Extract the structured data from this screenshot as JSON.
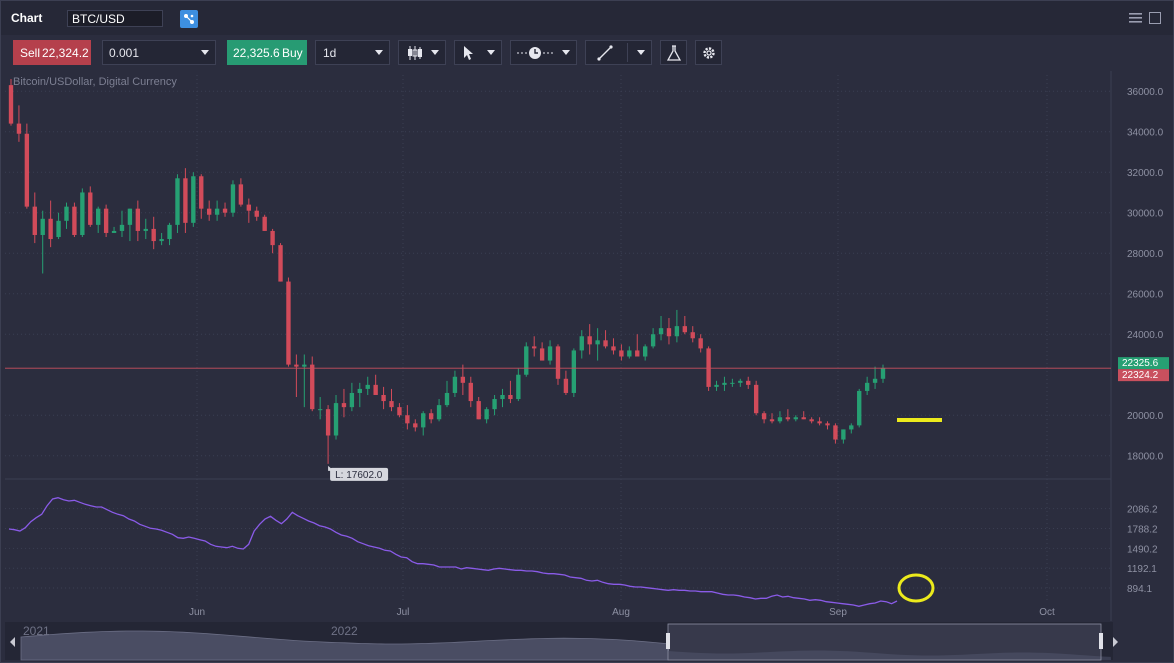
{
  "window": {
    "title": "Chart",
    "symbol": "BTC/USD"
  },
  "toolbar": {
    "sell_label": "Sell",
    "sell_price": "22,324.2",
    "quantity": "0.001",
    "buy_price": "22,325.6",
    "buy_label": "Buy",
    "timeframe": "1d"
  },
  "chart_data": {
    "type": "candlestick",
    "title": "Bitcoin/USDollar, Digital Currency",
    "x_ticks": [
      "Jun",
      "Jul",
      "Aug",
      "Sep",
      "Oct"
    ],
    "y_ticks": [
      "36000.0",
      "34000.0",
      "32000.0",
      "30000.0",
      "28000.0",
      "26000.0",
      "24000.0",
      "20000.0",
      "18000.0"
    ],
    "ylim": [
      17000,
      36800
    ],
    "ask_price": "22325.6",
    "bid_price": "22324.2",
    "low_marker": "L: 17602.0",
    "candles": [
      [
        36300,
        36600,
        34300,
        34400
      ],
      [
        34400,
        35300,
        33500,
        33900
      ],
      [
        33900,
        34400,
        30200,
        30300
      ],
      [
        30300,
        31000,
        28500,
        28900
      ],
      [
        28900,
        30100,
        27000,
        29700
      ],
      [
        29700,
        30600,
        28300,
        28700
      ],
      [
        28800,
        30000,
        28700,
        29600
      ],
      [
        29600,
        30500,
        29200,
        30300
      ],
      [
        30300,
        30500,
        28800,
        28900
      ],
      [
        28900,
        31200,
        28800,
        31000
      ],
      [
        31000,
        31300,
        29300,
        29400
      ],
      [
        29400,
        30300,
        29000,
        30200
      ],
      [
        30200,
        30400,
        28800,
        29000
      ],
      [
        29000,
        29300,
        29000,
        29100
      ],
      [
        29100,
        30100,
        28800,
        29400
      ],
      [
        29400,
        30200,
        28600,
        30200
      ],
      [
        30200,
        30600,
        28600,
        29100
      ],
      [
        29100,
        29700,
        28700,
        29200
      ],
      [
        29200,
        29800,
        28200,
        28600
      ],
      [
        28600,
        29000,
        28400,
        28700
      ],
      [
        28700,
        29500,
        28400,
        29400
      ],
      [
        29400,
        31900,
        29000,
        31700
      ],
      [
        31700,
        32200,
        29000,
        29500
      ],
      [
        29500,
        32000,
        29300,
        31800
      ],
      [
        31800,
        31900,
        29700,
        30200
      ],
      [
        30200,
        30600,
        29600,
        29900
      ],
      [
        29900,
        30600,
        29600,
        30200
      ],
      [
        30200,
        30500,
        29800,
        30000
      ],
      [
        30000,
        31600,
        29800,
        31400
      ],
      [
        31400,
        31700,
        30300,
        30400
      ],
      [
        30400,
        30700,
        29500,
        30100
      ],
      [
        30100,
        30300,
        29600,
        29800
      ],
      [
        29800,
        29900,
        29100,
        29100
      ],
      [
        29100,
        29200,
        28000,
        28400
      ],
      [
        28400,
        28500,
        26600,
        26600
      ],
      [
        26600,
        26800,
        22400,
        22500
      ],
      [
        22500,
        23000,
        20900,
        22400
      ],
      [
        22400,
        23000,
        20400,
        22500
      ],
      [
        22500,
        22900,
        20200,
        20300
      ],
      [
        20300,
        20900,
        19800,
        20300
      ],
      [
        20300,
        20500,
        17600,
        19000
      ],
      [
        19000,
        21000,
        18800,
        20600
      ],
      [
        20600,
        21300,
        19900,
        20400
      ],
      [
        20400,
        21600,
        20200,
        21100
      ],
      [
        21100,
        21600,
        20400,
        21300
      ],
      [
        21300,
        21900,
        21000,
        21500
      ],
      [
        21500,
        22000,
        21100,
        21000
      ],
      [
        21000,
        21400,
        20300,
        20700
      ],
      [
        20700,
        21300,
        20200,
        20400
      ],
      [
        20400,
        20600,
        19900,
        20000
      ],
      [
        20000,
        20500,
        19300,
        19600
      ],
      [
        19600,
        19800,
        19200,
        19400
      ],
      [
        19400,
        20200,
        19000,
        20100
      ],
      [
        20100,
        20300,
        19600,
        19800
      ],
      [
        19800,
        20800,
        19700,
        20500
      ],
      [
        20500,
        21700,
        20400,
        21100
      ],
      [
        21100,
        22200,
        20900,
        21900
      ],
      [
        21900,
        22500,
        21000,
        21600
      ],
      [
        21600,
        21900,
        20400,
        20700
      ],
      [
        20700,
        20900,
        19800,
        19800
      ],
      [
        19800,
        20400,
        19600,
        20300
      ],
      [
        20300,
        21000,
        20000,
        20800
      ],
      [
        20800,
        21300,
        20400,
        21000
      ],
      [
        21000,
        21700,
        20600,
        20800
      ],
      [
        20800,
        22300,
        20700,
        22000
      ],
      [
        22000,
        23600,
        21900,
        23400
      ],
      [
        23400,
        23900,
        22900,
        23300
      ],
      [
        23300,
        23600,
        22700,
        22700
      ],
      [
        22700,
        23700,
        22500,
        23400
      ],
      [
        23400,
        23500,
        21500,
        21800
      ],
      [
        21800,
        22200,
        21000,
        21100
      ],
      [
        21100,
        23300,
        20900,
        23200
      ],
      [
        23200,
        24200,
        22800,
        23900
      ],
      [
        23900,
        24500,
        23000,
        23500
      ],
      [
        23500,
        24300,
        22700,
        23700
      ],
      [
        23700,
        24200,
        23300,
        23400
      ],
      [
        23400,
        23800,
        23000,
        23200
      ],
      [
        23200,
        23500,
        22700,
        22900
      ],
      [
        22900,
        23400,
        22800,
        23200
      ],
      [
        23200,
        24000,
        22900,
        22900
      ],
      [
        22900,
        23500,
        22700,
        23400
      ],
      [
        23400,
        24300,
        23300,
        24000
      ],
      [
        24000,
        24900,
        23700,
        24300
      ],
      [
        24300,
        24800,
        23500,
        23900
      ],
      [
        23900,
        25200,
        23600,
        24400
      ],
      [
        24400,
        24900,
        24000,
        24100
      ],
      [
        24100,
        24400,
        23600,
        23800
      ],
      [
        23800,
        24000,
        23100,
        23300
      ],
      [
        23300,
        23400,
        21200,
        21400
      ],
      [
        21400,
        21700,
        21200,
        21500
      ],
      [
        21500,
        21900,
        21200,
        21600
      ],
      [
        21600,
        21800,
        21400,
        21600
      ],
      [
        21600,
        21800,
        21400,
        21700
      ],
      [
        21700,
        21900,
        21300,
        21500
      ],
      [
        21500,
        21700,
        20000,
        20100
      ],
      [
        20100,
        20200,
        19600,
        19800
      ],
      [
        19800,
        20100,
        19600,
        19700
      ],
      [
        19700,
        20200,
        19600,
        19900
      ],
      [
        19900,
        20300,
        19700,
        19800
      ],
      [
        19800,
        20000,
        19700,
        19900
      ],
      [
        19900,
        20200,
        19800,
        19800
      ],
      [
        19800,
        19900,
        19600,
        19700
      ],
      [
        19700,
        19900,
        19500,
        19600
      ],
      [
        19600,
        19700,
        19300,
        19500
      ],
      [
        19500,
        19600,
        18600,
        18800
      ],
      [
        18800,
        19300,
        18600,
        19300
      ],
      [
        19300,
        19600,
        19100,
        19500
      ],
      [
        19500,
        21300,
        19400,
        21200
      ],
      [
        21200,
        21900,
        21000,
        21600
      ],
      [
        21600,
        22400,
        21300,
        21800
      ],
      [
        21800,
        22500,
        21600,
        22325
      ]
    ],
    "series": [
      {
        "name": "",
        "y_ticks": [
          "2086.2",
          "1788.2",
          "1490.2",
          "1192.1",
          "894.1"
        ],
        "ylim": [
          700,
          2500
        ],
        "values": [
          1780,
          1770,
          1750,
          1800,
          1890,
          1950,
          2000,
          2130,
          2230,
          2250,
          2220,
          2200,
          2210,
          2180,
          2150,
          2130,
          2110,
          2110,
          2070,
          2030,
          2000,
          1980,
          1930,
          1900,
          1850,
          1820,
          1790,
          1780,
          1760,
          1730,
          1700,
          1650,
          1640,
          1660,
          1640,
          1620,
          1600,
          1550,
          1520,
          1510,
          1500,
          1520,
          1490,
          1480,
          1550,
          1750,
          1850,
          1930,
          1970,
          1910,
          1860,
          1930,
          2030,
          1980,
          1940,
          1900,
          1870,
          1830,
          1810,
          1780,
          1730,
          1690,
          1670,
          1640,
          1590,
          1560,
          1530,
          1510,
          1490,
          1460,
          1450,
          1400,
          1360,
          1350,
          1290,
          1260,
          1260,
          1250,
          1240,
          1210,
          1210,
          1210,
          1210,
          1180,
          1200,
          1190,
          1180,
          1170,
          1160,
          1180,
          1190,
          1180,
          1170,
          1160,
          1160,
          1150,
          1150,
          1140,
          1120,
          1110,
          1110,
          1100,
          1090,
          1060,
          1050,
          1040,
          1010,
          1000,
          1010,
          980,
          960,
          950,
          950,
          940,
          920,
          910,
          910,
          900,
          890,
          880,
          870,
          860,
          870,
          860,
          860,
          850,
          850,
          840,
          840,
          840,
          820,
          800,
          790,
          790,
          780,
          760,
          750,
          730,
          740,
          740,
          770,
          790,
          760,
          770,
          750,
          740,
          730,
          710,
          720,
          710,
          690,
          680,
          670,
          660,
          650,
          640,
          620,
          640,
          660,
          670,
          700,
          690,
          660,
          700
        ]
      }
    ],
    "navigator": {
      "labels": [
        "2021",
        "2022"
      ]
    }
  }
}
